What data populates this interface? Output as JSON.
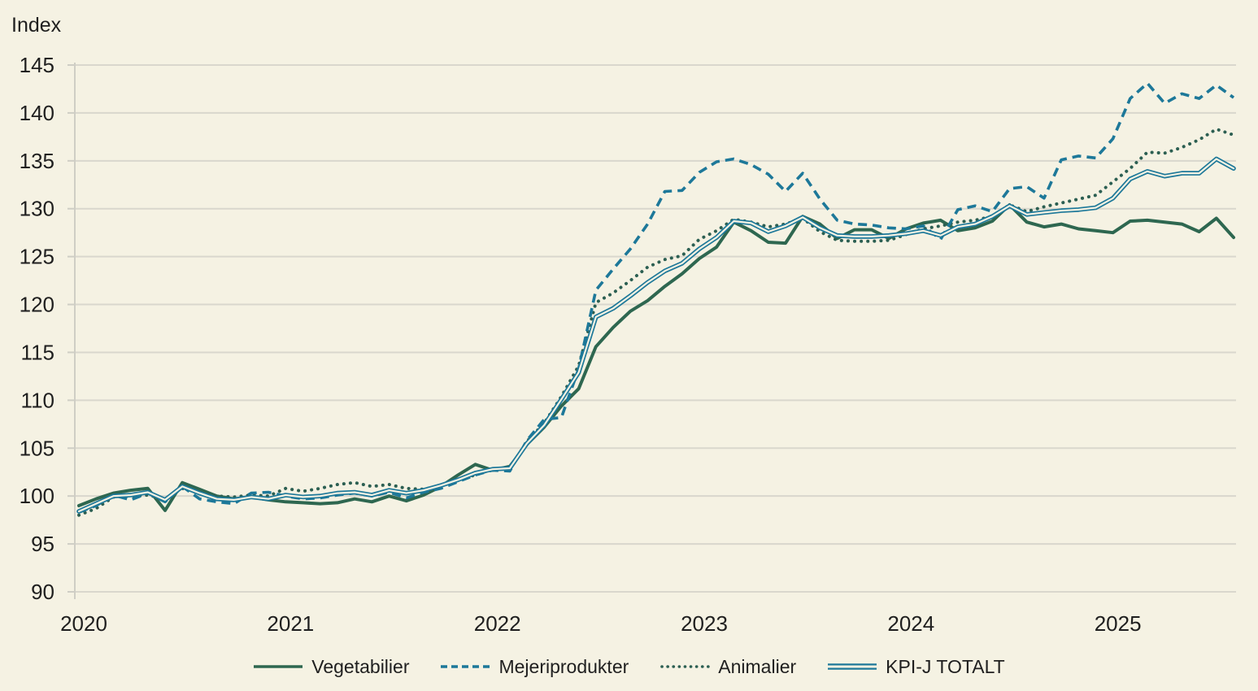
{
  "page": {
    "background": "#F5F2E3",
    "text_color": "#1F1F1F"
  },
  "chart_data": {
    "type": "line",
    "ylabel": "Index",
    "ylim": [
      90,
      145
    ],
    "y_ticks": [
      145,
      140,
      135,
      130,
      125,
      120,
      115,
      110,
      105,
      100,
      95,
      90
    ],
    "x_tick_labels": [
      "2020",
      "2021",
      "2022",
      "2023",
      "2024",
      "2025"
    ],
    "x_range": "monthly, 2020-01 to 2025-08",
    "grid": "horizontal",
    "legend_position": "bottom",
    "colors": {
      "grid": "#D9D7CD",
      "axis": "#CFCEC5"
    },
    "series": [
      {
        "name": "Vegetabilier",
        "style": "solid",
        "color": "#2E6750",
        "values": [
          99.0,
          99.7,
          100.3,
          100.6,
          100.8,
          98.5,
          101.4,
          100.7,
          100.0,
          99.7,
          99.9,
          99.6,
          99.4,
          99.3,
          99.2,
          99.3,
          99.7,
          99.4,
          100.0,
          99.5,
          100.1,
          101.0,
          102.2,
          103.3,
          102.7,
          103.1,
          105.4,
          107.2,
          109.4,
          111.2,
          115.6,
          117.6,
          119.3,
          120.4,
          121.9,
          123.2,
          124.8,
          126.0,
          128.6,
          127.7,
          126.5,
          126.4,
          129.2,
          128.4,
          126.9,
          127.8,
          127.8,
          126.9,
          127.9,
          128.5,
          128.8,
          127.7,
          128.0,
          128.7,
          130.4,
          128.6,
          128.1,
          128.4,
          127.9,
          127.7,
          127.5,
          128.7,
          128.8,
          128.6,
          128.4,
          127.6,
          129.0,
          127.0
        ]
      },
      {
        "name": "Mejeriprodukter",
        "style": "dashed",
        "color": "#1D7899",
        "values": [
          98.3,
          99.0,
          100.1,
          99.6,
          100.3,
          99.4,
          101.0,
          99.7,
          99.4,
          99.2,
          100.3,
          100.4,
          100.0,
          99.7,
          99.8,
          100.1,
          100.3,
          100.0,
          100.4,
          99.8,
          100.4,
          100.8,
          101.5,
          102.2,
          102.7,
          102.6,
          105.8,
          108.0,
          108.2,
          113.3,
          121.5,
          123.7,
          125.8,
          128.4,
          131.8,
          131.9,
          133.8,
          134.9,
          135.2,
          134.6,
          133.6,
          131.8,
          133.7,
          131.0,
          128.8,
          128.4,
          128.3,
          128.0,
          127.9,
          128.2,
          126.8,
          129.9,
          130.3,
          129.7,
          132.1,
          132.3,
          131.1,
          135.1,
          135.5,
          135.3,
          137.3,
          141.5,
          143.1,
          141.0,
          142.0,
          141.5,
          142.9,
          141.6
        ]
      },
      {
        "name": "Animalier",
        "style": "dotted",
        "color": "#2C5F52",
        "values": [
          98.0,
          98.7,
          99.9,
          100.0,
          100.1,
          99.7,
          100.8,
          100.4,
          100.0,
          99.9,
          100.1,
          100.0,
          100.8,
          100.5,
          100.8,
          101.2,
          101.4,
          101.0,
          101.2,
          100.8,
          100.7,
          101.1,
          101.7,
          102.2,
          102.8,
          102.9,
          105.7,
          107.6,
          110.4,
          113.6,
          120.2,
          121.2,
          122.5,
          123.9,
          124.7,
          125.1,
          126.8,
          127.7,
          128.9,
          128.6,
          128.1,
          128.4,
          129.0,
          127.6,
          126.7,
          126.6,
          126.6,
          126.7,
          127.3,
          127.9,
          128.2,
          128.6,
          128.8,
          129.2,
          130.4,
          129.7,
          130.2,
          130.6,
          131.0,
          131.4,
          132.8,
          134.2,
          135.9,
          135.8,
          136.4,
          137.2,
          138.3,
          137.7
        ]
      },
      {
        "name": "KPI-J TOTALT",
        "style": "double",
        "color": "#1D7899",
        "values": [
          98.4,
          99.2,
          100.0,
          100.1,
          100.4,
          99.6,
          101.0,
          100.3,
          99.7,
          99.6,
          99.9,
          99.7,
          100.1,
          99.9,
          100.0,
          100.3,
          100.4,
          100.1,
          100.6,
          100.3,
          100.6,
          101.1,
          101.7,
          102.4,
          102.8,
          102.9,
          105.5,
          107.4,
          110.1,
          112.9,
          118.7,
          119.6,
          120.9,
          122.3,
          123.5,
          124.3,
          125.8,
          127.0,
          128.7,
          128.5,
          127.6,
          128.2,
          129.1,
          128.0,
          127.2,
          127.1,
          127.1,
          127.2,
          127.4,
          127.7,
          127.2,
          128.1,
          128.4,
          129.2,
          130.3,
          129.4,
          129.6,
          129.8,
          129.9,
          130.1,
          131.1,
          133.1,
          133.9,
          133.4,
          133.7,
          133.7,
          135.2,
          134.2
        ]
      }
    ]
  }
}
